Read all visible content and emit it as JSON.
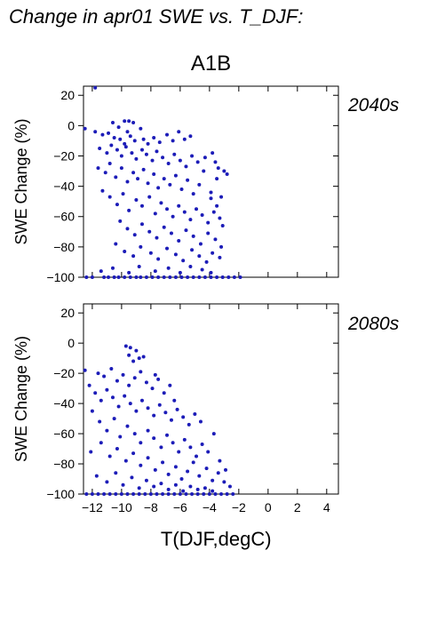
{
  "figure_title": "Change in apr01 SWE vs. T_DJF:",
  "scenario": "A1B",
  "colors": {
    "points": "#1c1cb8",
    "panel_label": "#2626a8",
    "axes": "#000000"
  },
  "chart_data": [
    {
      "type": "scatter",
      "panel_label": "2040s",
      "ylabel": "SWE Change (%)",
      "xlabel": "",
      "xlim": [
        -12.6,
        4.8
      ],
      "ylim": [
        -100,
        26
      ],
      "x_ticks": [
        -12,
        -10,
        -8,
        -6,
        -4,
        -2,
        0,
        2,
        4
      ],
      "x_tick_labels": [],
      "y_ticks": [
        20,
        0,
        -20,
        -40,
        -60,
        -80,
        -100
      ],
      "y_tick_labels": [
        "20",
        "0",
        "−20",
        "−40",
        "−60",
        "−80",
        "−100"
      ],
      "points": [
        [
          -11.8,
          25
        ],
        [
          -12.5,
          -2
        ],
        [
          -10.6,
          2
        ],
        [
          -9.8,
          3
        ],
        [
          -9.5,
          3
        ],
        [
          -9.2,
          2
        ],
        [
          -10.2,
          -1
        ],
        [
          -9.6,
          -4
        ],
        [
          -8.7,
          -2
        ],
        [
          -11.8,
          -4
        ],
        [
          -11.3,
          -6
        ],
        [
          -10.9,
          -5
        ],
        [
          -10.5,
          -8
        ],
        [
          -10.1,
          -9
        ],
        [
          -9.8,
          -12
        ],
        [
          -9.4,
          -7
        ],
        [
          -9.1,
          -10
        ],
        [
          -8.5,
          -9
        ],
        [
          -8.2,
          -12
        ],
        [
          -7.8,
          -8
        ],
        [
          -7.4,
          -11
        ],
        [
          -6.9,
          -6
        ],
        [
          -6.5,
          -10
        ],
        [
          -6.1,
          -4
        ],
        [
          -5.7,
          -9
        ],
        [
          -5.3,
          -7
        ],
        [
          -11.5,
          -15
        ],
        [
          -11.0,
          -18
        ],
        [
          -10.7,
          -13
        ],
        [
          -10.3,
          -16
        ],
        [
          -10.0,
          -20
        ],
        [
          -9.7,
          -14
        ],
        [
          -9.3,
          -18
        ],
        [
          -9.0,
          -22
        ],
        [
          -8.6,
          -16
        ],
        [
          -8.3,
          -19
        ],
        [
          -7.9,
          -23
        ],
        [
          -7.6,
          -17
        ],
        [
          -7.2,
          -21
        ],
        [
          -6.8,
          -25
        ],
        [
          -6.4,
          -19
        ],
        [
          -6.0,
          -23
        ],
        [
          -5.6,
          -27
        ],
        [
          -5.2,
          -20
        ],
        [
          -4.8,
          -24
        ],
        [
          -4.3,
          -21
        ],
        [
          -3.8,
          -18
        ],
        [
          -3.4,
          -28
        ],
        [
          -3.0,
          -30
        ],
        [
          -3.6,
          -24
        ],
        [
          -11.6,
          -28
        ],
        [
          -11.1,
          -31
        ],
        [
          -10.8,
          -25
        ],
        [
          -10.4,
          -34
        ],
        [
          -10.0,
          -28
        ],
        [
          -9.6,
          -37
        ],
        [
          -9.2,
          -31
        ],
        [
          -8.9,
          -35
        ],
        [
          -8.5,
          -29
        ],
        [
          -8.2,
          -38
        ],
        [
          -7.8,
          -32
        ],
        [
          -7.5,
          -41
        ],
        [
          -7.1,
          -35
        ],
        [
          -6.7,
          -39
        ],
        [
          -6.3,
          -33
        ],
        [
          -5.9,
          -42
        ],
        [
          -5.5,
          -36
        ],
        [
          -5.1,
          -45
        ],
        [
          -4.7,
          -39
        ],
        [
          -4.4,
          -30
        ],
        [
          -3.9,
          -44
        ],
        [
          -3.5,
          -35
        ],
        [
          -3.2,
          -47
        ],
        [
          -2.8,
          -32
        ],
        [
          -11.3,
          -43
        ],
        [
          -10.8,
          -47
        ],
        [
          -10.3,
          -52
        ],
        [
          -9.9,
          -45
        ],
        [
          -9.5,
          -56
        ],
        [
          -9.0,
          -49
        ],
        [
          -8.6,
          -53
        ],
        [
          -8.1,
          -47
        ],
        [
          -7.7,
          -58
        ],
        [
          -7.3,
          -51
        ],
        [
          -6.9,
          -55
        ],
        [
          -6.5,
          -60
        ],
        [
          -6.1,
          -53
        ],
        [
          -5.7,
          -57
        ],
        [
          -5.3,
          -62
        ],
        [
          -4.9,
          -55
        ],
        [
          -4.5,
          -59
        ],
        [
          -4.1,
          -64
        ],
        [
          -3.7,
          -57
        ],
        [
          -3.3,
          -61
        ],
        [
          -3.9,
          -48
        ],
        [
          -3.5,
          -53
        ],
        [
          -3.1,
          -66
        ],
        [
          -10.1,
          -63
        ],
        [
          -9.6,
          -68
        ],
        [
          -9.1,
          -72
        ],
        [
          -8.6,
          -65
        ],
        [
          -8.1,
          -70
        ],
        [
          -7.6,
          -74
        ],
        [
          -7.1,
          -67
        ],
        [
          -6.6,
          -71
        ],
        [
          -6.1,
          -76
        ],
        [
          -5.6,
          -69
        ],
        [
          -5.1,
          -73
        ],
        [
          -4.6,
          -78
        ],
        [
          -4.1,
          -71
        ],
        [
          -3.6,
          -75
        ],
        [
          -3.2,
          -80
        ],
        [
          -10.4,
          -78
        ],
        [
          -9.8,
          -83
        ],
        [
          -9.2,
          -86
        ],
        [
          -8.7,
          -80
        ],
        [
          -8.0,
          -84
        ],
        [
          -7.5,
          -88
        ],
        [
          -6.9,
          -81
        ],
        [
          -6.3,
          -85
        ],
        [
          -5.8,
          -89
        ],
        [
          -5.2,
          -82
        ],
        [
          -4.7,
          -86
        ],
        [
          -4.2,
          -90
        ],
        [
          -3.8,
          -84
        ],
        [
          -3.3,
          -87
        ],
        [
          -11.4,
          -96
        ],
        [
          -10.6,
          -94
        ],
        [
          -9.5,
          -97
        ],
        [
          -8.8,
          -93
        ],
        [
          -7.7,
          -96
        ],
        [
          -6.8,
          -94
        ],
        [
          -6.0,
          -97
        ],
        [
          -5.3,
          -93
        ],
        [
          -4.5,
          -95
        ],
        [
          -3.9,
          -97
        ],
        [
          -12.4,
          -100
        ],
        [
          -12.0,
          -100
        ],
        [
          -11.2,
          -100
        ],
        [
          -10.9,
          -100
        ],
        [
          -10.5,
          -100
        ],
        [
          -10.2,
          -100
        ],
        [
          -9.8,
          -100
        ],
        [
          -9.4,
          -100
        ],
        [
          -9.0,
          -100
        ],
        [
          -8.7,
          -100
        ],
        [
          -8.3,
          -100
        ],
        [
          -7.9,
          -100
        ],
        [
          -7.5,
          -100
        ],
        [
          -7.1,
          -100
        ],
        [
          -6.7,
          -100
        ],
        [
          -6.3,
          -100
        ],
        [
          -5.9,
          -100
        ],
        [
          -5.5,
          -100
        ],
        [
          -5.1,
          -100
        ],
        [
          -4.7,
          -100
        ],
        [
          -4.3,
          -100
        ],
        [
          -3.9,
          -100
        ],
        [
          -3.5,
          -100
        ],
        [
          -3.1,
          -100
        ],
        [
          -2.7,
          -100
        ],
        [
          -2.3,
          -100
        ],
        [
          -1.9,
          -100
        ]
      ]
    },
    {
      "type": "scatter",
      "panel_label": "2080s",
      "ylabel": "SWE Change (%)",
      "xlabel": "T(DJF,degC)",
      "xlim": [
        -12.6,
        4.8
      ],
      "ylim": [
        -100,
        26
      ],
      "x_ticks": [
        -12,
        -10,
        -8,
        -6,
        -4,
        -2,
        0,
        2,
        4
      ],
      "x_tick_labels": [
        "−12",
        "−10",
        "−8",
        "−6",
        "−4",
        "−2",
        "0",
        "2",
        "4"
      ],
      "y_ticks": [
        20,
        0,
        -20,
        -40,
        -60,
        -80,
        -100
      ],
      "y_tick_labels": [
        "20",
        "0",
        "−20",
        "−40",
        "−60",
        "−80",
        "−100"
      ],
      "points": [
        [
          -9.7,
          -2
        ],
        [
          -9.4,
          -3
        ],
        [
          -9.0,
          -5
        ],
        [
          -9.5,
          -8
        ],
        [
          -8.8,
          -10
        ],
        [
          -9.2,
          -12
        ],
        [
          -8.5,
          -9
        ],
        [
          -12.5,
          -18
        ],
        [
          -11.6,
          -20
        ],
        [
          -11.2,
          -22
        ],
        [
          -10.7,
          -17
        ],
        [
          -10.3,
          -25
        ],
        [
          -9.9,
          -21
        ],
        [
          -9.5,
          -28
        ],
        [
          -9.1,
          -23
        ],
        [
          -8.7,
          -19
        ],
        [
          -8.3,
          -26
        ],
        [
          -7.9,
          -30
        ],
        [
          -7.5,
          -24
        ],
        [
          -7.1,
          -33
        ],
        [
          -6.7,
          -28
        ],
        [
          -7.7,
          -21
        ],
        [
          -12.2,
          -28
        ],
        [
          -11.8,
          -33
        ],
        [
          -11.4,
          -38
        ],
        [
          -11.0,
          -31
        ],
        [
          -10.6,
          -36
        ],
        [
          -10.2,
          -42
        ],
        [
          -9.8,
          -35
        ],
        [
          -9.4,
          -40
        ],
        [
          -9.0,
          -45
        ],
        [
          -8.6,
          -38
        ],
        [
          -8.2,
          -43
        ],
        [
          -7.8,
          -48
        ],
        [
          -7.4,
          -41
        ],
        [
          -7.0,
          -46
        ],
        [
          -6.6,
          -51
        ],
        [
          -6.2,
          -44
        ],
        [
          -5.8,
          -49
        ],
        [
          -5.4,
          -54
        ],
        [
          -5.0,
          -47
        ],
        [
          -4.6,
          -52
        ],
        [
          -6.4,
          -38
        ],
        [
          -12.0,
          -45
        ],
        [
          -11.5,
          -52
        ],
        [
          -11.0,
          -58
        ],
        [
          -10.5,
          -50
        ],
        [
          -10.1,
          -62
        ],
        [
          -9.6,
          -55
        ],
        [
          -9.1,
          -60
        ],
        [
          -8.7,
          -66
        ],
        [
          -8.2,
          -58
        ],
        [
          -7.8,
          -63
        ],
        [
          -7.3,
          -69
        ],
        [
          -6.9,
          -61
        ],
        [
          -6.5,
          -66
        ],
        [
          -6.1,
          -72
        ],
        [
          -5.7,
          -64
        ],
        [
          -5.3,
          -69
        ],
        [
          -4.9,
          -75
        ],
        [
          -4.5,
          -67
        ],
        [
          -4.1,
          -72
        ],
        [
          -3.7,
          -60
        ],
        [
          -3.3,
          -78
        ],
        [
          -2.9,
          -84
        ],
        [
          -12.1,
          -72
        ],
        [
          -11.4,
          -66
        ],
        [
          -10.8,
          -75
        ],
        [
          -10.3,
          -70
        ],
        [
          -9.7,
          -78
        ],
        [
          -9.2,
          -73
        ],
        [
          -8.7,
          -81
        ],
        [
          -8.2,
          -76
        ],
        [
          -7.7,
          -84
        ],
        [
          -7.2,
          -79
        ],
        [
          -6.8,
          -87
        ],
        [
          -6.3,
          -82
        ],
        [
          -5.9,
          -90
        ],
        [
          -5.5,
          -85
        ],
        [
          -5.1,
          -79
        ],
        [
          -4.7,
          -88
        ],
        [
          -4.2,
          -83
        ],
        [
          -3.8,
          -91
        ],
        [
          -3.4,
          -86
        ],
        [
          -3.0,
          -92
        ],
        [
          -2.6,
          -95
        ],
        [
          -11.7,
          -88
        ],
        [
          -11.0,
          -92
        ],
        [
          -10.4,
          -86
        ],
        [
          -9.9,
          -94
        ],
        [
          -9.3,
          -89
        ],
        [
          -8.8,
          -96
        ],
        [
          -8.3,
          -91
        ],
        [
          -7.8,
          -95
        ],
        [
          -7.3,
          -93
        ],
        [
          -6.8,
          -97
        ],
        [
          -6.3,
          -94
        ],
        [
          -5.8,
          -98
        ],
        [
          -5.3,
          -95
        ],
        [
          -4.8,
          -97
        ],
        [
          -4.3,
          -96
        ],
        [
          -3.8,
          -98
        ],
        [
          -12.4,
          -100
        ],
        [
          -12.0,
          -100
        ],
        [
          -11.6,
          -100
        ],
        [
          -11.2,
          -100
        ],
        [
          -10.8,
          -100
        ],
        [
          -10.4,
          -100
        ],
        [
          -10.0,
          -100
        ],
        [
          -9.6,
          -100
        ],
        [
          -9.2,
          -100
        ],
        [
          -8.8,
          -100
        ],
        [
          -8.4,
          -100
        ],
        [
          -8.0,
          -100
        ],
        [
          -7.6,
          -100
        ],
        [
          -7.2,
          -100
        ],
        [
          -6.8,
          -100
        ],
        [
          -6.4,
          -100
        ],
        [
          -6.0,
          -100
        ],
        [
          -5.6,
          -100
        ],
        [
          -5.2,
          -100
        ],
        [
          -4.8,
          -100
        ],
        [
          -4.4,
          -100
        ],
        [
          -4.0,
          -100
        ],
        [
          -3.6,
          -100
        ],
        [
          -3.2,
          -100
        ],
        [
          -2.8,
          -100
        ],
        [
          -2.4,
          -100
        ]
      ]
    }
  ]
}
